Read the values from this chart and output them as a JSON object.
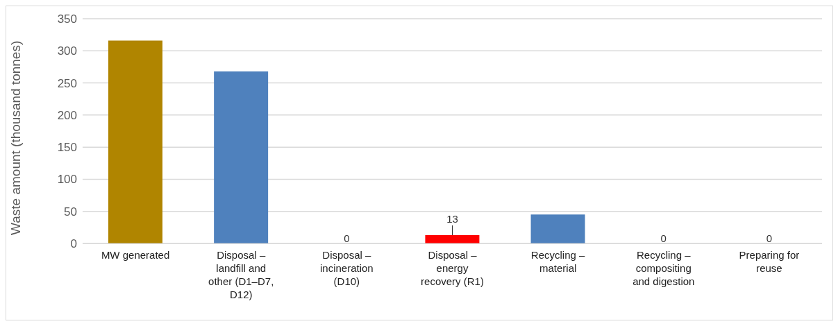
{
  "chart_data": {
    "type": "bar",
    "ylabel": "Waste amount (thousand tonnes)",
    "categories": [
      "MW generated",
      "Disposal – landfill and other (D1–D7, D12)",
      "Disposal – incineration (D10)",
      "Disposal – energy recovery (R1)",
      "Recycling – material",
      "Recycling – compositing and digestion",
      "Preparing for reuse"
    ],
    "values": [
      316,
      268,
      0,
      13,
      45,
      0,
      0
    ],
    "colors": [
      "#b08500",
      "#4f81bd",
      "#4f81bd",
      "#ff0000",
      "#4f81bd",
      "#4f81bd",
      "#4f81bd"
    ],
    "value_labels": [
      null,
      null,
      "0",
      "13",
      null,
      "0",
      "0"
    ],
    "ylim": [
      0,
      350
    ],
    "yticks": [
      0,
      50,
      100,
      150,
      200,
      250,
      300,
      350
    ],
    "grid": "y",
    "legend": false
  }
}
